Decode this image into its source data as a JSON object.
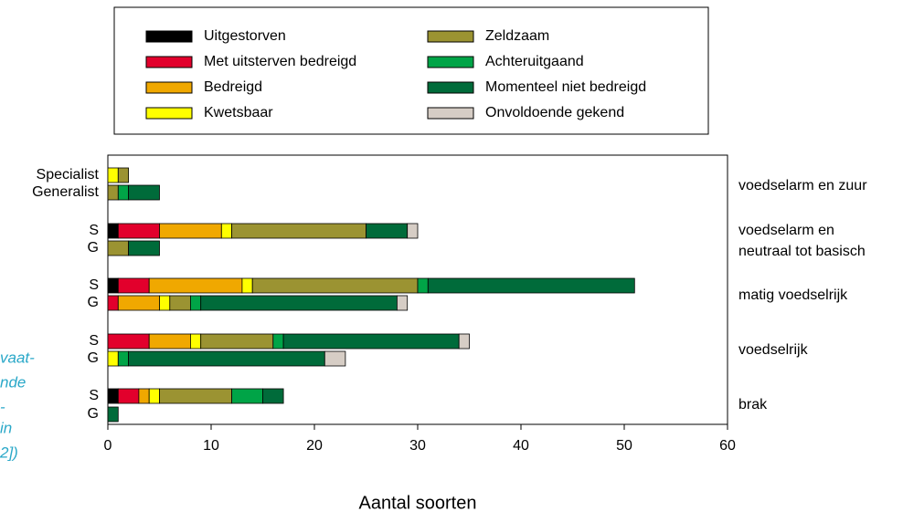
{
  "chart_data": {
    "type": "stacked-barh",
    "x_label": "Aantal soorten",
    "xlim": [
      0,
      60
    ],
    "xticks": [
      0,
      10,
      20,
      30,
      40,
      50,
      60
    ],
    "categories": [
      "Specialist",
      "Generalist",
      "S",
      "G",
      "S",
      "G",
      "S",
      "G",
      "S",
      "G"
    ],
    "groups": [
      [
        "voedselarm en zuur"
      ],
      [
        "voedselarm en",
        "neutraal tot basisch"
      ],
      [
        "matig voedselrijk"
      ],
      [
        "voedselrijk"
      ],
      [
        "brak"
      ]
    ],
    "side_note": [
      "vaat-",
      "nde",
      "-",
      "in",
      "2])"
    ],
    "series": [
      {
        "name": "Uitgestorven",
        "color": "#000000",
        "values": [
          0,
          0,
          1,
          0,
          1,
          0,
          0,
          0,
          1,
          0
        ]
      },
      {
        "name": "Met uitsterven bedreigd",
        "color": "#e2002c",
        "values": [
          0,
          0,
          4,
          0,
          3,
          1,
          4,
          0,
          2,
          0
        ]
      },
      {
        "name": "Bedreigd",
        "color": "#f0a800",
        "values": [
          0,
          0,
          6,
          0,
          9,
          4,
          4,
          0,
          1,
          0
        ]
      },
      {
        "name": "Kwetsbaar",
        "color": "#ffff00",
        "values": [
          1,
          0,
          1,
          0,
          1,
          1,
          1,
          1,
          1,
          0
        ]
      },
      {
        "name": "Zeldzaam",
        "color": "#9b9332",
        "values": [
          1,
          1,
          13,
          2,
          16,
          2,
          7,
          0,
          7,
          0
        ]
      },
      {
        "name": "Achteruitgaand",
        "color": "#00a447",
        "values": [
          0,
          1,
          0,
          0,
          1,
          1,
          1,
          1,
          3,
          0
        ]
      },
      {
        "name": "Momenteel niet bedreigd",
        "color": "#006b3a",
        "values": [
          0,
          3,
          4,
          3,
          20,
          19,
          17,
          19,
          2,
          1
        ]
      },
      {
        "name": "Onvoldoende gekend",
        "color": "#d6cdc5",
        "values": [
          0,
          0,
          1,
          0,
          0,
          1,
          1,
          2,
          0,
          0
        ]
      }
    ]
  }
}
